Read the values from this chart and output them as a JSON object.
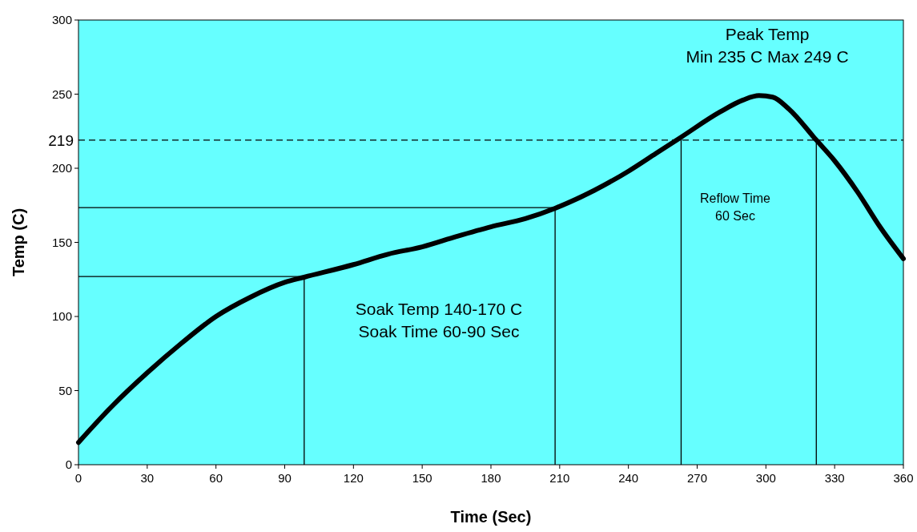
{
  "chart_data": {
    "type": "line",
    "xlabel": "Time (Sec)",
    "ylabel": "Temp (C)",
    "x": [
      0,
      15,
      30,
      45,
      60,
      75,
      90,
      98.5,
      120,
      135,
      150,
      165,
      180,
      195,
      208,
      225,
      240,
      252,
      263,
      280,
      290,
      297,
      303,
      310,
      322,
      330,
      340,
      350,
      360
    ],
    "series": [
      {
        "color": "#000000",
        "values": [
          15,
          40,
          62,
          82,
          100,
          113,
          123,
          126.5,
          135,
          142,
          147,
          154,
          160.5,
          166,
          173,
          185,
          198,
          210,
          221,
          238,
          246,
          249,
          248,
          240,
          219,
          205,
          184,
          160,
          139
        ]
      }
    ],
    "xlim": [
      0,
      360
    ],
    "xticks": [
      0,
      30,
      60,
      90,
      120,
      150,
      180,
      210,
      240,
      270,
      300,
      330,
      360
    ],
    "ylim": [
      0,
      300
    ],
    "yticks": [
      0,
      50,
      100,
      150,
      200,
      250,
      300
    ],
    "grid": false,
    "marker": "none",
    "line_style": "solid",
    "ref_lines": [
      {
        "axis": "y",
        "value": 219,
        "label": "219",
        "line_style": "dashed",
        "color": "#000000"
      },
      {
        "axis": "x",
        "value": 98.5,
        "color": "#000000"
      },
      {
        "axis": "x",
        "value": 208,
        "color": "#000000"
      },
      {
        "axis": "x",
        "value": 263,
        "color": "#000000"
      },
      {
        "axis": "x",
        "value": 322,
        "color": "#000000"
      },
      {
        "axis": "y",
        "value": 127,
        "color": "#000000"
      },
      {
        "axis": "y",
        "value": 173.5,
        "color": "#000000"
      }
    ],
    "annotations": [
      "Peak Temp\nMin 235 C Max 249 C",
      "Reflow Time\n60 Sec",
      "Soak Temp 140-170 C\nSoak Time 60-90 Sec"
    ]
  }
}
